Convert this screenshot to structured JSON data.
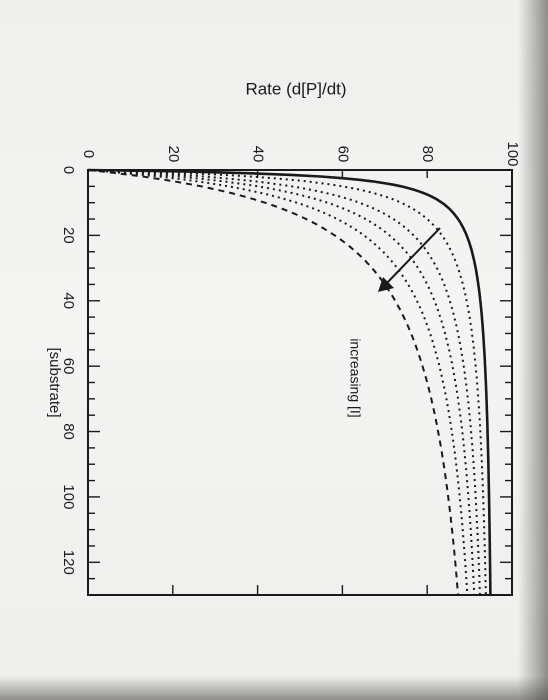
{
  "chart_data": {
    "type": "line",
    "xlabel": "[substrate]",
    "ylabel": "Rate (d[P]/dt)",
    "xlim": [
      0,
      130
    ],
    "ylim": [
      0,
      100
    ],
    "x_ticks": [
      0,
      20,
      40,
      60,
      80,
      100,
      120
    ],
    "y_ticks": [
      0,
      20,
      40,
      60,
      80,
      100
    ],
    "grid": false,
    "annotation": "increasing [I]",
    "series": [
      {
        "style": "solid",
        "vmax": 96,
        "km": 1.5
      },
      {
        "style": "dotted",
        "vmax": 96,
        "km": 3
      },
      {
        "style": "dotted",
        "vmax": 96,
        "km": 5
      },
      {
        "style": "dotted",
        "vmax": 96,
        "km": 7
      },
      {
        "style": "dotted",
        "vmax": 96,
        "km": 9.5
      },
      {
        "style": "dashed",
        "vmax": 96,
        "km": 13
      }
    ]
  }
}
